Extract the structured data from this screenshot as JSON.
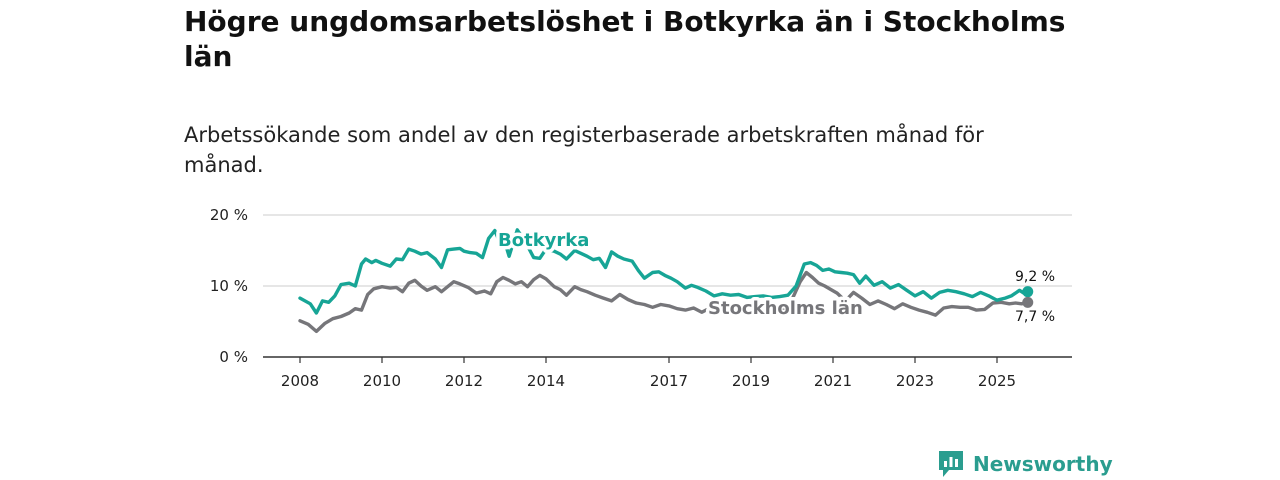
{
  "title": "Högre ungdomsarbetslöshet i Botkyrka än i Stockholms län",
  "subtitle": "Arbetssökande som andel av den registerbaserade arbetskraften månad för månad.",
  "brand": {
    "name": "Newsworthy",
    "icon": "newsworthy-logo-icon"
  },
  "colors": {
    "botkyrka": "#17a596",
    "stockholm": "#76767a",
    "grid": "#d6d6d6",
    "axis": "#333333"
  },
  "chart_data": {
    "type": "line",
    "title": "Högre ungdomsarbetslöshet i Botkyrka än i Stockholms län",
    "xlabel": "",
    "ylabel": "",
    "xlim": [
      2008,
      2026.8
    ],
    "ylim": [
      0,
      20
    ],
    "y_ticks": [
      0,
      10,
      20
    ],
    "y_tick_labels": [
      "0 %",
      "10 %",
      "20 %"
    ],
    "x_ticks": [
      2008,
      2010,
      2012,
      2014,
      2017,
      2019,
      2021,
      2023,
      2025
    ],
    "x_tick_labels": [
      "2008",
      "2010",
      "2012",
      "2014",
      "2017",
      "2019",
      "2021",
      "2023",
      "2025"
    ],
    "grid": true,
    "series": [
      {
        "name": "Botkyrka",
        "label": "Botkyrka",
        "end_label": "9,2 %",
        "x": [
          2008.0,
          2008.25,
          2008.4,
          2008.55,
          2008.7,
          2008.85,
          2009.0,
          2009.2,
          2009.35,
          2009.5,
          2009.6,
          2009.75,
          2009.85,
          2010.0,
          2010.2,
          2010.35,
          2010.5,
          2010.65,
          2010.8,
          2010.95,
          2011.1,
          2011.3,
          2011.45,
          2011.6,
          2011.75,
          2011.9,
          2012.0,
          2012.15,
          2012.3,
          2012.45,
          2012.6,
          2012.75,
          2012.85,
          2013.0,
          2013.1,
          2013.3,
          2013.5,
          2013.7,
          2013.85,
          2014.0,
          2014.2,
          2014.35,
          2014.5,
          2014.7,
          2014.85,
          2015.0,
          2015.15,
          2015.3,
          2015.45,
          2015.6,
          2015.75,
          2015.9,
          2016.1,
          2016.25,
          2016.4,
          2016.6,
          2016.75,
          2016.9,
          2017.05,
          2017.2,
          2017.4,
          2017.55,
          2017.7,
          2017.9,
          2018.1,
          2018.3,
          2018.5,
          2018.7,
          2018.9,
          2019.1,
          2019.3,
          2019.5,
          2019.7,
          2019.9,
          2020.1,
          2020.3,
          2020.45,
          2020.6,
          2020.75,
          2020.9,
          2021.05,
          2021.2,
          2021.35,
          2021.5,
          2021.65,
          2021.8,
          2022.0,
          2022.2,
          2022.4,
          2022.6,
          2022.8,
          2023.0,
          2023.2,
          2023.4,
          2023.6,
          2023.8,
          2024.0,
          2024.2,
          2024.4,
          2024.6,
          2024.8,
          2025.0,
          2025.2,
          2025.35,
          2025.45,
          2025.55,
          2025.65,
          2025.75
        ],
        "values": [
          8.3,
          7.5,
          6.2,
          7.9,
          7.7,
          8.6,
          10.2,
          10.4,
          10.0,
          13.1,
          13.8,
          13.3,
          13.6,
          13.2,
          12.8,
          13.8,
          13.7,
          15.2,
          14.9,
          14.5,
          14.7,
          13.8,
          12.6,
          15.1,
          15.2,
          15.3,
          14.9,
          14.7,
          14.6,
          14.0,
          16.7,
          17.8,
          16.5,
          16.1,
          14.2,
          17.9,
          16.2,
          14.0,
          13.9,
          15.2,
          14.9,
          14.5,
          13.8,
          15.0,
          14.6,
          14.2,
          13.7,
          13.9,
          12.6,
          14.8,
          14.2,
          13.8,
          13.5,
          12.2,
          11.1,
          11.9,
          12.0,
          11.5,
          11.1,
          10.6,
          9.7,
          10.1,
          9.8,
          9.3,
          8.6,
          8.9,
          8.7,
          8.8,
          8.4,
          8.5,
          8.6,
          8.4,
          8.5,
          8.7,
          10.0,
          13.1,
          13.3,
          12.9,
          12.2,
          12.4,
          12.0,
          11.9,
          11.8,
          11.6,
          10.4,
          11.4,
          10.1,
          10.6,
          9.7,
          10.2,
          9.4,
          8.6,
          9.2,
          8.3,
          9.1,
          9.4,
          9.2,
          8.9,
          8.5,
          9.1,
          8.6,
          8.0,
          8.3,
          8.6,
          9.0,
          9.4,
          9.0,
          9.2
        ]
      },
      {
        "name": "Stockholms län",
        "label": "Stockholms län",
        "end_label": "7,7 %",
        "x": [
          2008.0,
          2008.2,
          2008.4,
          2008.6,
          2008.8,
          2009.0,
          2009.2,
          2009.35,
          2009.5,
          2009.65,
          2009.8,
          2010.0,
          2010.2,
          2010.35,
          2010.5,
          2010.65,
          2010.8,
          2010.95,
          2011.1,
          2011.3,
          2011.45,
          2011.6,
          2011.75,
          2011.9,
          2012.1,
          2012.3,
          2012.5,
          2012.65,
          2012.8,
          2012.95,
          2013.1,
          2013.25,
          2013.4,
          2013.55,
          2013.7,
          2013.85,
          2014.0,
          2014.2,
          2014.35,
          2014.5,
          2014.7,
          2014.85,
          2015.0,
          2015.2,
          2015.4,
          2015.6,
          2015.8,
          2016.0,
          2016.2,
          2016.4,
          2016.6,
          2016.8,
          2017.0,
          2017.2,
          2017.4,
          2017.6,
          2017.8,
          2018.0,
          2018.2,
          2018.4,
          2018.6,
          2018.8,
          2019.0,
          2019.2,
          2019.4,
          2019.6,
          2019.8,
          2020.0,
          2020.2,
          2020.35,
          2020.5,
          2020.65,
          2020.8,
          2020.95,
          2021.1,
          2021.3,
          2021.5,
          2021.7,
          2021.9,
          2022.1,
          2022.3,
          2022.5,
          2022.7,
          2022.9,
          2023.1,
          2023.3,
          2023.5,
          2023.7,
          2023.9,
          2024.1,
          2024.3,
          2024.5,
          2024.7,
          2024.9,
          2025.1,
          2025.3,
          2025.45,
          2025.6,
          2025.75
        ],
        "values": [
          5.1,
          4.6,
          3.6,
          4.7,
          5.4,
          5.7,
          6.2,
          6.8,
          6.6,
          8.8,
          9.6,
          9.9,
          9.7,
          9.8,
          9.2,
          10.4,
          10.8,
          10.0,
          9.4,
          9.9,
          9.2,
          9.9,
          10.6,
          10.3,
          9.8,
          9.0,
          9.3,
          8.9,
          10.6,
          11.2,
          10.8,
          10.3,
          10.6,
          9.9,
          10.9,
          11.5,
          11.0,
          9.9,
          9.5,
          8.7,
          9.9,
          9.5,
          9.2,
          8.7,
          8.3,
          7.9,
          8.8,
          8.1,
          7.6,
          7.4,
          7.0,
          7.4,
          7.2,
          6.8,
          6.6,
          6.9,
          6.3,
          6.9,
          6.5,
          6.9,
          6.0,
          6.7,
          6.3,
          6.1,
          5.9,
          6.4,
          6.6,
          8.1,
          10.6,
          11.9,
          11.2,
          10.4,
          10.0,
          9.5,
          9.0,
          7.9,
          9.1,
          8.3,
          7.4,
          7.9,
          7.4,
          6.8,
          7.5,
          7.0,
          6.6,
          6.3,
          5.9,
          6.9,
          7.1,
          7.0,
          7.0,
          6.6,
          6.7,
          7.6,
          7.7,
          7.5,
          7.6,
          7.5,
          7.7
        ]
      }
    ]
  }
}
